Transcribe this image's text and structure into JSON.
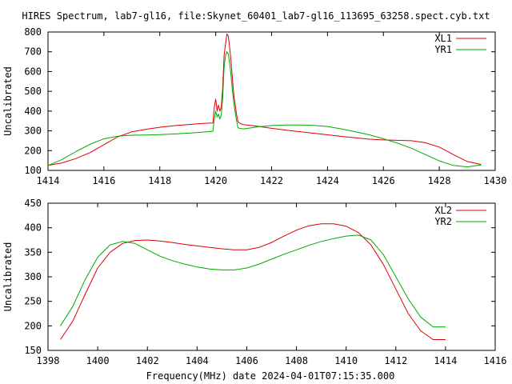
{
  "title": "HIRES Spectrum, lab7-gl16, file:Skynet_60401_lab7-gl16_113695_63258.spect.cyb.txt",
  "xlabel": "Frequency(MHz) date 2024-04-01T07:15:35.000",
  "chart_data": [
    {
      "type": "line",
      "ylabel": "Uncalibrated",
      "xlim": [
        1414,
        1430
      ],
      "ylim": [
        100,
        800
      ],
      "xticks": [
        1414,
        1416,
        1418,
        1420,
        1422,
        1424,
        1426,
        1428,
        1430
      ],
      "yticks": [
        100,
        200,
        300,
        400,
        500,
        600,
        700,
        800
      ],
      "grid": false,
      "legend_position": "top-right",
      "series": [
        {
          "name": "XL1",
          "color": "#dd0000",
          "x": [
            1414.0,
            1414.5,
            1415.0,
            1415.5,
            1416.0,
            1416.5,
            1417.0,
            1417.5,
            1418.0,
            1418.5,
            1419.0,
            1419.5,
            1419.9,
            1419.95,
            1420.0,
            1420.05,
            1420.1,
            1420.15,
            1420.2,
            1420.25,
            1420.3,
            1420.35,
            1420.4,
            1420.45,
            1420.5,
            1420.55,
            1420.6,
            1420.65,
            1420.7,
            1420.75,
            1420.8,
            1420.9,
            1421.0,
            1421.5,
            1422.0,
            1422.5,
            1423.0,
            1423.5,
            1424.0,
            1424.5,
            1425.0,
            1425.5,
            1426.0,
            1426.5,
            1427.0,
            1427.5,
            1428.0,
            1428.5,
            1429.0,
            1429.5
          ],
          "y": [
            125,
            138,
            160,
            190,
            230,
            270,
            295,
            308,
            318,
            326,
            332,
            337,
            340,
            420,
            460,
            400,
            430,
            400,
            420,
            520,
            680,
            740,
            790,
            780,
            720,
            650,
            560,
            480,
            430,
            380,
            345,
            335,
            332,
            323,
            313,
            304,
            296,
            288,
            280,
            272,
            265,
            258,
            254,
            252,
            250,
            240,
            218,
            180,
            145,
            130
          ]
        },
        {
          "name": "YR1",
          "color": "#00aa00",
          "x": [
            1414.0,
            1414.5,
            1415.0,
            1415.5,
            1416.0,
            1416.5,
            1417.0,
            1417.5,
            1418.0,
            1418.5,
            1419.0,
            1419.5,
            1419.9,
            1419.95,
            1420.0,
            1420.05,
            1420.1,
            1420.15,
            1420.2,
            1420.25,
            1420.3,
            1420.35,
            1420.4,
            1420.45,
            1420.5,
            1420.55,
            1420.6,
            1420.65,
            1420.7,
            1420.75,
            1420.8,
            1420.9,
            1421.0,
            1421.5,
            1422.0,
            1422.5,
            1423.0,
            1423.5,
            1424.0,
            1424.5,
            1425.0,
            1425.5,
            1426.0,
            1426.5,
            1427.0,
            1427.5,
            1428.0,
            1428.5,
            1429.0,
            1429.5
          ],
          "y": [
            125,
            155,
            195,
            232,
            260,
            273,
            278,
            279,
            281,
            284,
            288,
            293,
            298,
            360,
            400,
            370,
            385,
            360,
            380,
            470,
            620,
            680,
            700,
            690,
            640,
            580,
            500,
            440,
            390,
            350,
            315,
            312,
            310,
            320,
            327,
            330,
            330,
            328,
            322,
            310,
            295,
            280,
            260,
            238,
            212,
            180,
            148,
            125,
            118,
            128
          ]
        }
      ]
    },
    {
      "type": "line",
      "ylabel": "Uncalibrated",
      "xlim": [
        1398,
        1416
      ],
      "ylim": [
        150,
        450
      ],
      "xticks": [
        1398,
        1400,
        1402,
        1404,
        1406,
        1408,
        1410,
        1412,
        1414,
        1416
      ],
      "yticks": [
        150,
        200,
        250,
        300,
        350,
        400,
        450
      ],
      "grid": false,
      "legend_position": "top-right",
      "series": [
        {
          "name": "XL2",
          "color": "#dd0000",
          "x": [
            1398.5,
            1399.0,
            1399.5,
            1400.0,
            1400.5,
            1401.0,
            1401.5,
            1402.0,
            1402.5,
            1403.0,
            1403.5,
            1404.0,
            1404.5,
            1405.0,
            1405.5,
            1406.0,
            1406.5,
            1407.0,
            1407.5,
            1408.0,
            1408.5,
            1409.0,
            1409.5,
            1410.0,
            1410.5,
            1411.0,
            1411.5,
            1412.0,
            1412.5,
            1413.0,
            1413.5,
            1414.0
          ],
          "y": [
            172,
            210,
            265,
            318,
            350,
            368,
            374,
            375,
            373,
            370,
            366,
            363,
            360,
            357,
            355,
            355,
            360,
            370,
            383,
            395,
            404,
            408,
            408,
            403,
            390,
            365,
            325,
            275,
            225,
            190,
            172,
            172
          ]
        },
        {
          "name": "YR2",
          "color": "#00aa00",
          "x": [
            1398.5,
            1399.0,
            1399.5,
            1400.0,
            1400.5,
            1401.0,
            1401.5,
            1402.0,
            1402.5,
            1403.0,
            1403.5,
            1404.0,
            1404.5,
            1405.0,
            1405.5,
            1406.0,
            1406.5,
            1407.0,
            1407.5,
            1408.0,
            1408.5,
            1409.0,
            1409.5,
            1410.0,
            1410.5,
            1411.0,
            1411.5,
            1412.0,
            1412.5,
            1413.0,
            1413.5,
            1414.0
          ],
          "y": [
            200,
            240,
            295,
            340,
            365,
            372,
            368,
            355,
            342,
            333,
            326,
            320,
            316,
            314,
            314,
            318,
            326,
            336,
            346,
            355,
            364,
            372,
            378,
            383,
            385,
            375,
            345,
            300,
            255,
            218,
            198,
            198
          ]
        }
      ]
    }
  ]
}
